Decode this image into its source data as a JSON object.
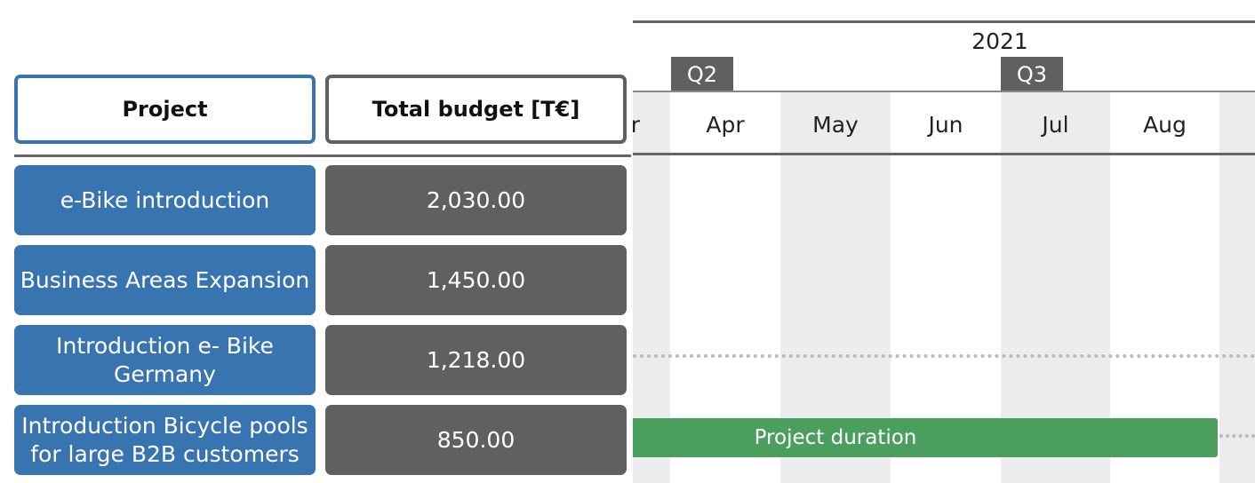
{
  "header": {
    "project": "Project",
    "budget": "Total budget [T€]"
  },
  "timeline": {
    "year": "2021",
    "quarters": [
      "Q2",
      "Q3"
    ],
    "months": [
      "Mar",
      "Apr",
      "May",
      "Jun",
      "Jul",
      "Aug"
    ]
  },
  "rows": [
    {
      "name": "e-Bike introduction",
      "budget": "2,030.00"
    },
    {
      "name": "Business Areas Expansion",
      "budget": "1,450.00"
    },
    {
      "name": "Introduction e- Bike Germany",
      "budget": "1,218.00"
    },
    {
      "name": "Introduction Bicycle pools for large B2B customers",
      "budget": "850.00"
    }
  ],
  "bar": {
    "label": "Project duration"
  }
}
